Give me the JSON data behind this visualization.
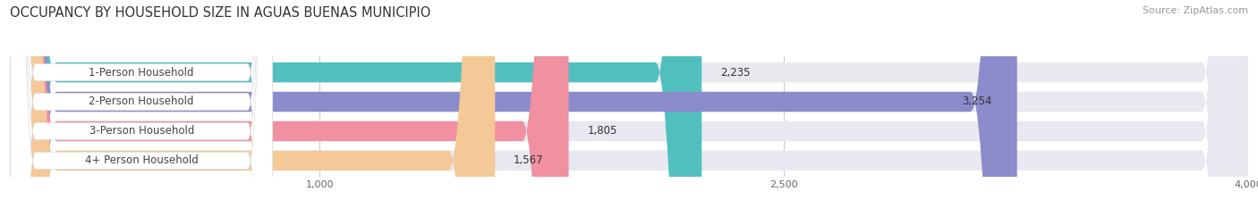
{
  "title": "OCCUPANCY BY HOUSEHOLD SIZE IN AGUAS BUENAS MUNICIPIO",
  "source": "Source: ZipAtlas.com",
  "categories": [
    "1-Person Household",
    "2-Person Household",
    "3-Person Household",
    "4+ Person Household"
  ],
  "values": [
    2235,
    3254,
    1805,
    1567
  ],
  "bar_colors": [
    "#52BFBF",
    "#8C8CCC",
    "#F090A0",
    "#F5C898"
  ],
  "bar_bg_color": "#E8E8F0",
  "xlim_data": [
    0,
    4000
  ],
  "xlim_display": [
    0,
    4000
  ],
  "xticks": [
    1000,
    2500,
    4000
  ],
  "title_fontsize": 10.5,
  "source_fontsize": 8,
  "bar_label_fontsize": 8.5,
  "category_fontsize": 8.5,
  "background_color": "#FFFFFF"
}
